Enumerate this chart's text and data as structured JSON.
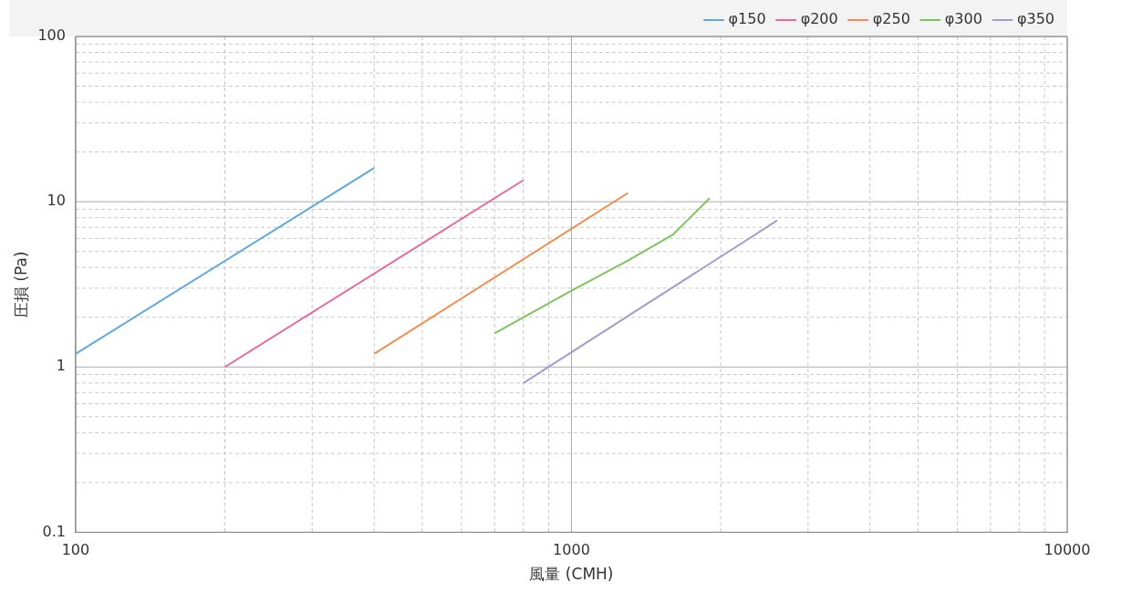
{
  "chart_data": {
    "type": "line",
    "xlabel": "風量 (CMH)",
    "ylabel": "圧損 (Pa)",
    "log": "xy",
    "grid": true,
    "legend": "top right",
    "marker": "none",
    "xlim": [
      100,
      10000
    ],
    "xticks": [
      100,
      {
        "value": 200,
        "label": null
      },
      {
        "value": 300,
        "label": null
      },
      {
        "value": 400,
        "label": null
      },
      {
        "value": 500,
        "label": null
      },
      {
        "value": 600,
        "label": null
      },
      {
        "value": 700,
        "label": null
      },
      {
        "value": 800,
        "label": null
      },
      {
        "value": 900,
        "label": null
      },
      1000,
      {
        "value": 2000,
        "label": null
      },
      {
        "value": 3000,
        "label": null
      },
      {
        "value": 4000,
        "label": null
      },
      {
        "value": 5000,
        "label": null
      },
      {
        "value": 6000,
        "label": null
      },
      {
        "value": 7000,
        "label": null
      },
      {
        "value": 8000,
        "label": null
      },
      {
        "value": 9000,
        "label": null
      },
      10000
    ],
    "ylim": [
      0.1,
      100
    ],
    "yticks": [
      0.1,
      {
        "value": 0.2,
        "label": null
      },
      {
        "value": 0.3,
        "label": null
      },
      {
        "value": 0.4,
        "label": null
      },
      {
        "value": 0.5,
        "label": null
      },
      {
        "value": 0.6,
        "label": null
      },
      {
        "value": 0.7,
        "label": null
      },
      {
        "value": 0.8,
        "label": null
      },
      {
        "value": 0.9,
        "label": null
      },
      1,
      {
        "value": 2,
        "label": null
      },
      {
        "value": 3,
        "label": null
      },
      {
        "value": 4,
        "label": null
      },
      {
        "value": 5,
        "label": null
      },
      {
        "value": 6,
        "label": null
      },
      {
        "value": 7,
        "label": null
      },
      {
        "value": 8,
        "label": null
      },
      {
        "value": 9,
        "label": null
      },
      10,
      {
        "value": 20,
        "label": null
      },
      {
        "value": 30,
        "label": null
      },
      {
        "value": 40,
        "label": null
      },
      {
        "value": 50,
        "label": null
      },
      {
        "value": 60,
        "label": null
      },
      {
        "value": 70,
        "label": null
      },
      {
        "value": 80,
        "label": null
      },
      {
        "value": 90,
        "label": null
      },
      100
    ],
    "series": [
      {
        "name": "φ150",
        "color": "#5fa8dc",
        "x": [
          100,
          400
        ],
        "values": [
          1.2,
          16
        ]
      },
      {
        "name": "φ200",
        "color": "#e8689e",
        "x": [
          200,
          800
        ],
        "values": [
          1.0,
          13.5
        ]
      },
      {
        "name": "φ250",
        "color": "#f08c4c",
        "x": [
          400,
          1300
        ],
        "values": [
          1.2,
          11.3
        ]
      },
      {
        "name": "φ300",
        "color": "#7dc45e",
        "x": [
          700,
          1000,
          1300,
          1600,
          1900
        ],
        "values": [
          1.6,
          2.9,
          4.4,
          6.3,
          10.5
        ]
      },
      {
        "name": "φ350",
        "color": "#a49ccd",
        "x": [
          800,
          2600
        ],
        "values": [
          0.8,
          7.7
        ]
      }
    ]
  }
}
